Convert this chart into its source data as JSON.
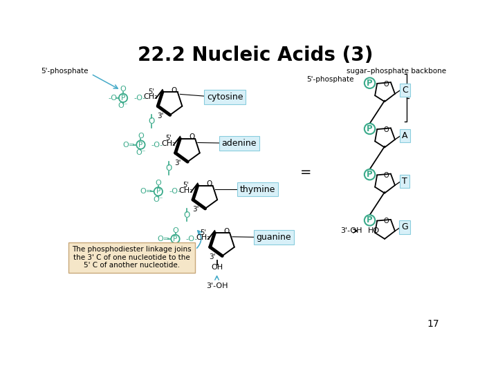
{
  "title": "22.2 Nucleic Acids (3)",
  "title_fontsize": 20,
  "title_fontweight": "bold",
  "page_number": "17",
  "bg_color": "#ffffff",
  "green_color": "#3aaa8a",
  "black_color": "#000000",
  "blue_color": "#45aac8",
  "annotation_box_color": "#f5e6c8",
  "annotation_box_edge": "#c8a87a",
  "label_box_color": "#d8f0f8",
  "label_box_edge": "#88ccdd",
  "bases_left": [
    "cytosine",
    "adenine",
    "thymine",
    "guanine"
  ],
  "bases_right": [
    "C",
    "A",
    "T",
    "G"
  ]
}
